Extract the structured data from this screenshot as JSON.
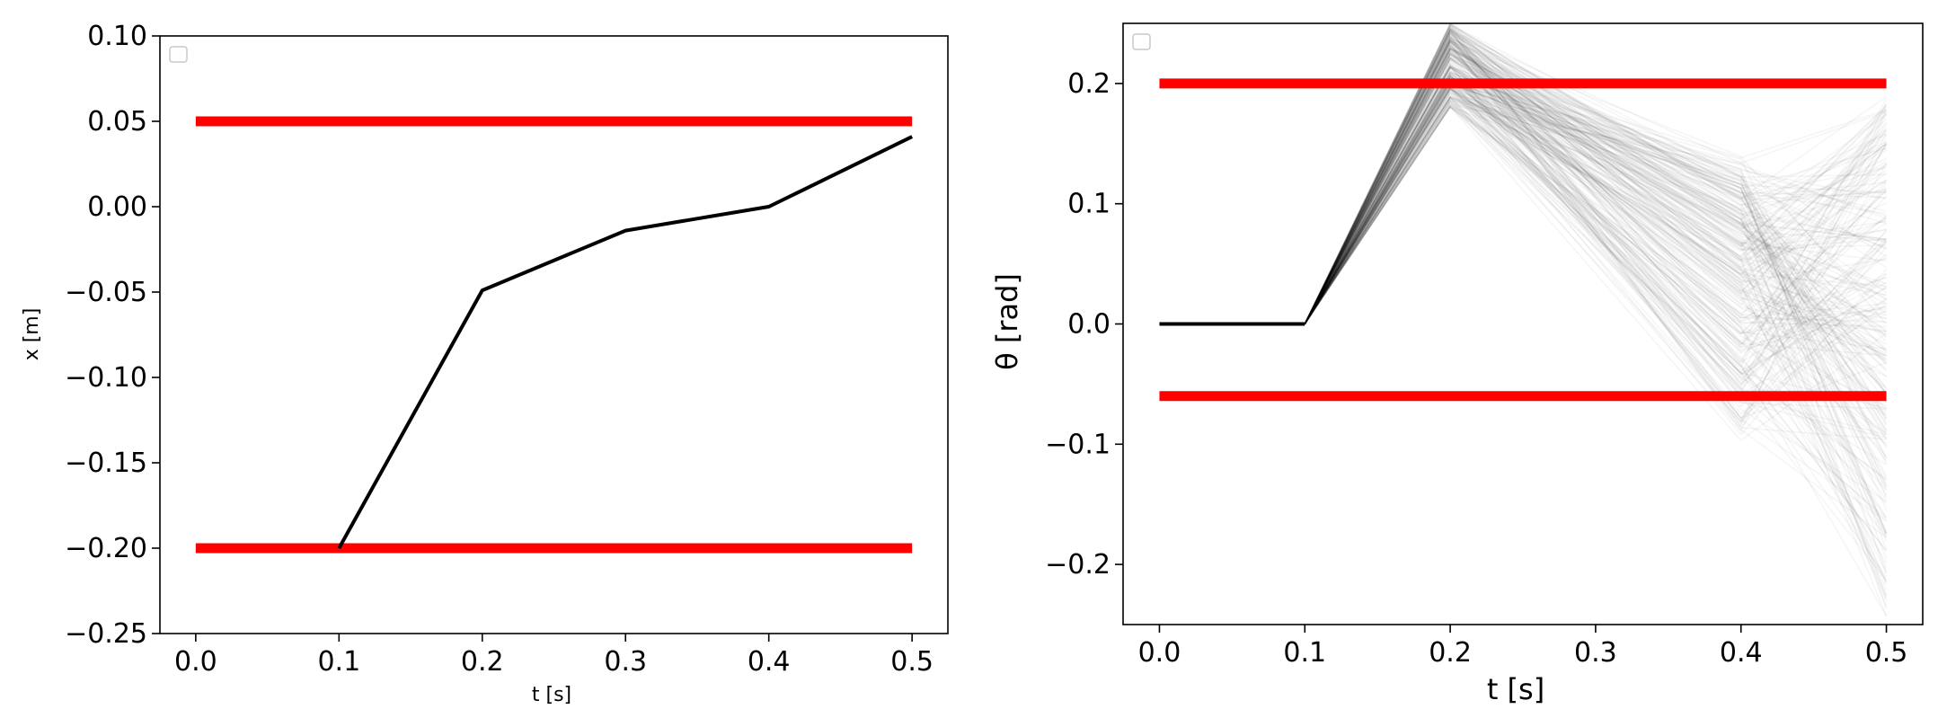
{
  "chart_data": [
    {
      "type": "line",
      "title": "",
      "xlabel": "t [s]",
      "ylabel": "x [m]",
      "xlim": [
        -0.025,
        0.525
      ],
      "ylim": [
        -0.25,
        0.1
      ],
      "xticks": [
        0.0,
        0.1,
        0.2,
        0.3,
        0.4,
        0.5
      ],
      "xtick_labels": [
        "0.0",
        "0.1",
        "0.2",
        "0.3",
        "0.4",
        "0.5"
      ],
      "yticks": [
        0.1,
        0.05,
        0.0,
        -0.05,
        -0.1,
        -0.15,
        -0.2,
        -0.25
      ],
      "ytick_labels": [
        "0.10",
        "0.05",
        "0.00",
        "−0.05",
        "−0.10",
        "−0.15",
        "−0.20",
        "−0.25"
      ],
      "grid": false,
      "legend": "top-left",
      "bounds": [
        {
          "y": 0.05,
          "x": [
            0.0,
            0.5
          ],
          "color": "#ff0000"
        },
        {
          "y": -0.2,
          "x": [
            0.0,
            0.5
          ],
          "color": "#ff0000"
        }
      ],
      "series": [
        {
          "x": [
            0.1,
            0.2,
            0.3,
            0.4,
            0.5
          ],
          "y": [
            -0.2,
            -0.049,
            -0.014,
            0.0,
            0.041
          ],
          "color": "#000000"
        }
      ]
    },
    {
      "type": "line",
      "title": "",
      "xlabel": "t [s]",
      "ylabel": "θ [rad]",
      "xlim": [
        -0.025,
        0.525
      ],
      "ylim": [
        -0.25,
        0.25
      ],
      "xticks": [
        0.0,
        0.1,
        0.2,
        0.3,
        0.4,
        0.5
      ],
      "xtick_labels": [
        "0.0",
        "0.1",
        "0.2",
        "0.3",
        "0.4",
        "0.5"
      ],
      "yticks": [
        0.2,
        0.1,
        0.0,
        -0.1,
        -0.2
      ],
      "ytick_labels": [
        "0.2",
        "0.1",
        "0.0",
        "−0.1",
        "−0.2"
      ],
      "grid": false,
      "legend": "top-left",
      "bounds": [
        {
          "y": 0.2,
          "x": [
            0.0,
            0.5
          ],
          "color": "#ff0000"
        },
        {
          "y": -0.06,
          "x": [
            0.0,
            0.5
          ],
          "color": "#ff0000"
        }
      ],
      "series": [
        {
          "x": [
            0.0,
            0.1
          ],
          "y": [
            0.0,
            0.0
          ],
          "color": "#000000"
        }
      ],
      "ensemble": {
        "x": [
          0.1,
          0.2,
          0.4,
          0.5
        ],
        "y_at_0.2": [
          0.18,
          0.25
        ],
        "y_at_0.4": [
          -0.1,
          0.14
        ],
        "y_at_0.5": [
          -0.25,
          0.19
        ],
        "color": "#000000",
        "opacity": 0.04
      }
    }
  ]
}
